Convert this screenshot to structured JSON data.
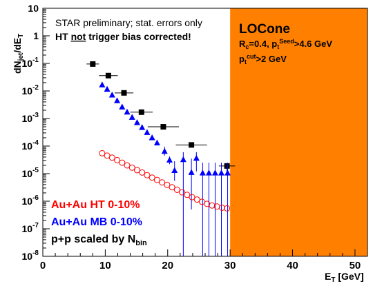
{
  "chart_data": {
    "type": "scatter",
    "title": "",
    "xlabel": "E_T [GeV]",
    "ylabel": "dN_jet/dE_T",
    "xlim": [
      0,
      52
    ],
    "ylim_log10": [
      -8,
      1
    ],
    "log_y": true,
    "xticks": [
      "0",
      "10",
      "20",
      "30",
      "40",
      "50"
    ],
    "yticks": [
      "10",
      "1",
      "10^-1",
      "10^-2",
      "10^-3",
      "10^-4",
      "10^-5",
      "10^-6",
      "10^-7",
      "10^-8"
    ],
    "shaded_region": {
      "x_from": 30,
      "x_to": 52,
      "color": "#ff8000"
    },
    "annotations": {
      "note1": "STAR preliminary; stat. errors only",
      "note2_pre": "HT ",
      "note2_underlined": "not",
      "note2_post": " trigger bias corrected!",
      "box_title": "LOCone",
      "box_line1": "R_c=0.4, p_t^Seed>4.6 GeV",
      "box_line2": "p_t^cut>2 GeV"
    },
    "legend": [
      {
        "name": "Au+Au HT 0-10%",
        "color": "#ff0000"
      },
      {
        "name": "Au+Au MB 0-10%",
        "color": "#0000ff"
      },
      {
        "name": "p+p scaled by N_bin",
        "color": "#000000"
      }
    ],
    "series": [
      {
        "label_ref": "p+p scaled by N_bin",
        "marker": "square",
        "color": "#000000",
        "points": [
          {
            "x": 8.0,
            "y": 0.095,
            "xerr": 1.0
          },
          {
            "x": 10.5,
            "y": 0.036,
            "xerr": 1.5
          },
          {
            "x": 13.0,
            "y": 0.0085,
            "xerr": 1.5
          },
          {
            "x": 15.8,
            "y": 0.0017,
            "xerr": 1.8
          },
          {
            "x": 19.3,
            "y": 0.0005,
            "xerr": 2.5
          },
          {
            "x": 23.8,
            "y": 0.00011,
            "xerr": 2.5
          },
          {
            "x": 29.5,
            "y": 1.9e-05,
            "xerr": 1.3,
            "yerr_low_to": 8.5e-06
          }
        ]
      },
      {
        "label_ref": "Au+Au MB 0-10%",
        "marker": "triangle",
        "color": "#0000ff",
        "points": [
          {
            "x": 9.5,
            "y": 0.0165
          },
          {
            "x": 10.3,
            "y": 0.0115
          },
          {
            "x": 11.1,
            "y": 0.0071
          },
          {
            "x": 11.9,
            "y": 0.0044
          },
          {
            "x": 12.7,
            "y": 0.0026
          },
          {
            "x": 13.5,
            "y": 0.0017
          },
          {
            "x": 14.3,
            "y": 0.0011
          },
          {
            "x": 15.1,
            "y": 0.00071
          },
          {
            "x": 15.9,
            "y": 0.00047
          },
          {
            "x": 16.7,
            "y": 0.00031
          },
          {
            "x": 17.5,
            "y": 0.0002
          },
          {
            "x": 18.3,
            "y": 0.00013
          },
          {
            "x": 19.5,
            "y": 6.4e-05,
            "yerr_up_to": 9.5e-05,
            "yerr_low_to": 4.5e-05
          },
          {
            "x": 20.3,
            "y": 3.1e-05,
            "yerr_up_to": 4.2e-05,
            "yerr_low_to": 2.2e-05
          },
          {
            "x": 21.1,
            "y": 1.3e-05,
            "yerr_up_to": 2.8e-05,
            "yerr_low_to": 5.5e-06
          },
          {
            "x": 22.5,
            "y": 3.2e-05,
            "yerr_up_to": 6e-05,
            "yerr_low_to": 1e-08
          },
          {
            "x": 23.8,
            "y": 1.1e-05,
            "yerr_up_to": 3.5e-05,
            "yerr_low_to": 5e-07
          },
          {
            "x": 24.6,
            "y": 3.6e-05,
            "yerr_up_to": 6e-05,
            "yerr_low_to": 1.2e-05
          },
          {
            "x": 25.6,
            "y": 1.05e-05,
            "yerr_up_to": 2.5e-05,
            "yerr_low_to": 1e-08
          },
          {
            "x": 26.6,
            "y": 1.05e-05,
            "yerr_up_to": 2.5e-05,
            "yerr_low_to": 1e-08
          },
          {
            "x": 27.6,
            "y": 1.05e-05,
            "yerr_up_to": 2.5e-05,
            "yerr_low_to": 1e-08
          },
          {
            "x": 28.6,
            "y": 1.05e-05,
            "yerr_up_to": 2.5e-05,
            "yerr_low_to": 1e-08
          },
          {
            "x": 29.6,
            "y": 1.05e-05,
            "yerr_up_to": 2.5e-05,
            "yerr_low_to": 1e-08
          }
        ]
      },
      {
        "label_ref": "Au+Au HT 0-10%",
        "marker": "open-circle",
        "color": "#ff0000",
        "points": [
          {
            "x": 9.5,
            "y": 5.5e-05
          },
          {
            "x": 10.3,
            "y": 4.5e-05
          },
          {
            "x": 11.1,
            "y": 3.8e-05
          },
          {
            "x": 11.9,
            "y": 3.1e-05
          },
          {
            "x": 12.7,
            "y": 2.5e-05
          },
          {
            "x": 13.5,
            "y": 2e-05
          },
          {
            "x": 14.3,
            "y": 1.65e-05
          },
          {
            "x": 15.1,
            "y": 1.34e-05
          },
          {
            "x": 15.9,
            "y": 1.1e-05
          },
          {
            "x": 16.7,
            "y": 8.8e-06
          },
          {
            "x": 17.5,
            "y": 7.2e-06
          },
          {
            "x": 18.3,
            "y": 5.9e-06
          },
          {
            "x": 19.1,
            "y": 4.8e-06
          },
          {
            "x": 19.9,
            "y": 3.9e-06
          },
          {
            "x": 20.7,
            "y": 3.2e-06
          },
          {
            "x": 21.5,
            "y": 2.6e-06
          },
          {
            "x": 22.3,
            "y": 2.1e-06
          },
          {
            "x": 23.1,
            "y": 1.7e-06
          },
          {
            "x": 23.9,
            "y": 1.4e-06
          },
          {
            "x": 24.7,
            "y": 1.15e-06
          },
          {
            "x": 25.5,
            "y": 9.5e-07
          },
          {
            "x": 26.3,
            "y": 8e-07
          },
          {
            "x": 27.1,
            "y": 7e-07
          },
          {
            "x": 27.9,
            "y": 6.4e-07
          },
          {
            "x": 28.7,
            "y": 5.8e-07
          },
          {
            "x": 29.5,
            "y": 5.5e-07
          }
        ]
      }
    ]
  }
}
